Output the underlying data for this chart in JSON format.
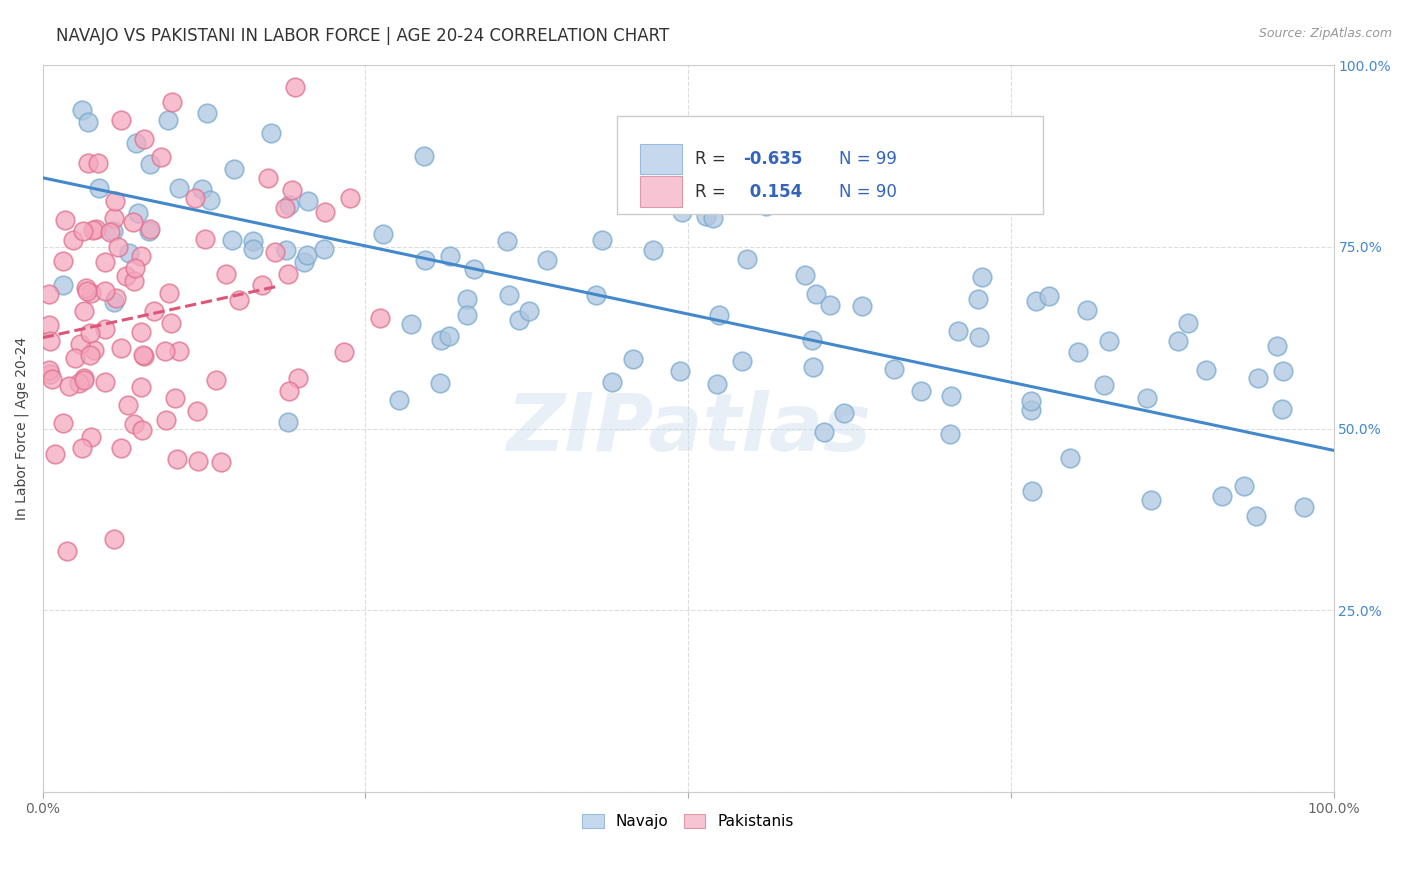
{
  "title": "NAVAJO VS PAKISTANI IN LABOR FORCE | AGE 20-24 CORRELATION CHART",
  "source": "Source: ZipAtlas.com",
  "ylabel": "In Labor Force | Age 20-24",
  "xlim": [
    0.0,
    1.0
  ],
  "ylim": [
    0.0,
    1.0
  ],
  "xtick_positions": [
    0.0,
    0.25,
    0.5,
    0.75,
    1.0
  ],
  "xtick_labels": [
    "0.0%",
    "",
    "",
    "",
    "100.0%"
  ],
  "ytick_positions": [
    0.0,
    0.25,
    0.5,
    0.75,
    1.0
  ],
  "right_ytick_labels": [
    "",
    "25.0%",
    "50.0%",
    "75.0%",
    "100.0%"
  ],
  "navajo_R": -0.635,
  "navajo_N": 99,
  "pakistani_R": 0.154,
  "pakistani_N": 90,
  "navajo_color": "#aec6e0",
  "navajo_edge": "#7aaad0",
  "pakistani_color": "#f4a8be",
  "pakistani_edge": "#e07090",
  "navajo_line_color": "#4488cc",
  "pakistani_line_color": "#dd5577",
  "legend_navajo_color": "#c5d8ee",
  "legend_pakistani_color": "#f7c4d4",
  "watermark": "ZIPatlas",
  "background_color": "#ffffff",
  "grid_color": "#dddddd",
  "title_fontsize": 12,
  "axis_label_fontsize": 10,
  "tick_fontsize": 10,
  "right_tick_color": "#4488cc",
  "navajo_line_x0": 0.0,
  "navajo_line_x1": 1.0,
  "navajo_line_y0": 0.845,
  "navajo_line_y1": 0.47,
  "pakistani_line_x0": 0.0,
  "pakistani_line_x1": 0.18,
  "pakistani_line_y0": 0.625,
  "pakistani_line_y1": 0.695
}
